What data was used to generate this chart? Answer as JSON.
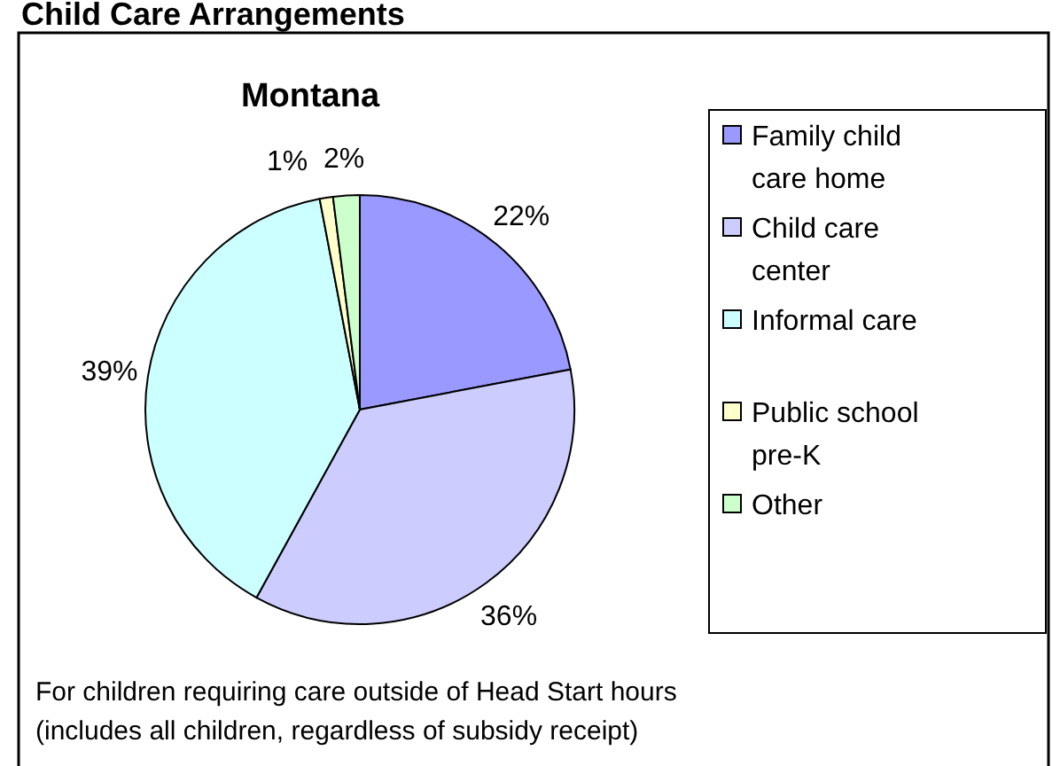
{
  "chart_data": {
    "type": "pie",
    "title": "Child Care Arrangements",
    "subtitle": "Montana",
    "categories": [
      "Family child care home",
      "Child care center",
      "Informal care",
      "Public school pre-K",
      "Other"
    ],
    "values": [
      22,
      36,
      39,
      1,
      2
    ],
    "value_labels": [
      "22%",
      "36%",
      "39%",
      "1%",
      "2%"
    ],
    "colors": [
      "#9999ff",
      "#ccccff",
      "#ccffff",
      "#ffffcc",
      "#ccffcc"
    ],
    "legend": "right",
    "annotations": [
      "For children requiring care outside of Head Start hours",
      "(includes all children, regardless of subsidy receipt)"
    ]
  }
}
